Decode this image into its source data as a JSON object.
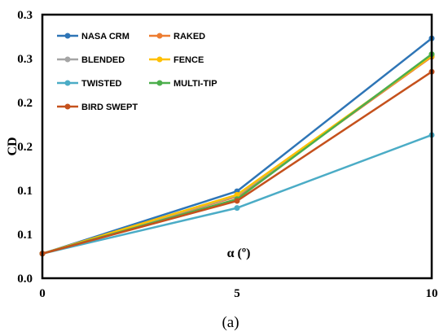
{
  "chart_data": {
    "type": "line",
    "title": "",
    "xlabel": "α (º)",
    "ylabel": "CD",
    "caption": "(a)",
    "x": [
      0,
      5,
      10
    ],
    "x_ticks": [
      "0",
      "5",
      "10"
    ],
    "xlim": [
      0,
      10
    ],
    "ylim": [
      0.0,
      0.3
    ],
    "y_ticks": [
      0.0,
      0.05,
      0.1,
      0.15,
      0.2,
      0.25,
      0.3
    ],
    "y_tick_labels": [
      "0.0",
      "0.1",
      "0.1",
      "0.2",
      "0.2",
      "0.3",
      "0.3"
    ],
    "grid": false,
    "legend_position": "top-left",
    "series": [
      {
        "name": "NASA CRM",
        "color": "#2e75b6",
        "values": [
          0.028,
          0.099,
          0.273
        ]
      },
      {
        "name": "RAKED",
        "color": "#ed7d31",
        "values": [
          0.028,
          0.093,
          0.252
        ]
      },
      {
        "name": "BLENDED",
        "color": "#a5a5a5",
        "values": [
          0.028,
          0.094,
          0.253
        ]
      },
      {
        "name": "FENCE",
        "color": "#ffc000",
        "values": [
          0.028,
          0.095,
          0.253
        ]
      },
      {
        "name": "TWISTED",
        "color": "#4bacc6",
        "values": [
          0.028,
          0.08,
          0.163
        ]
      },
      {
        "name": "MULTI-TIP",
        "color": "#4cae4c",
        "values": [
          0.028,
          0.09,
          0.255
        ]
      },
      {
        "name": "BIRD SWEPT",
        "color": "#c5511c",
        "values": [
          0.028,
          0.088,
          0.235
        ]
      }
    ]
  }
}
